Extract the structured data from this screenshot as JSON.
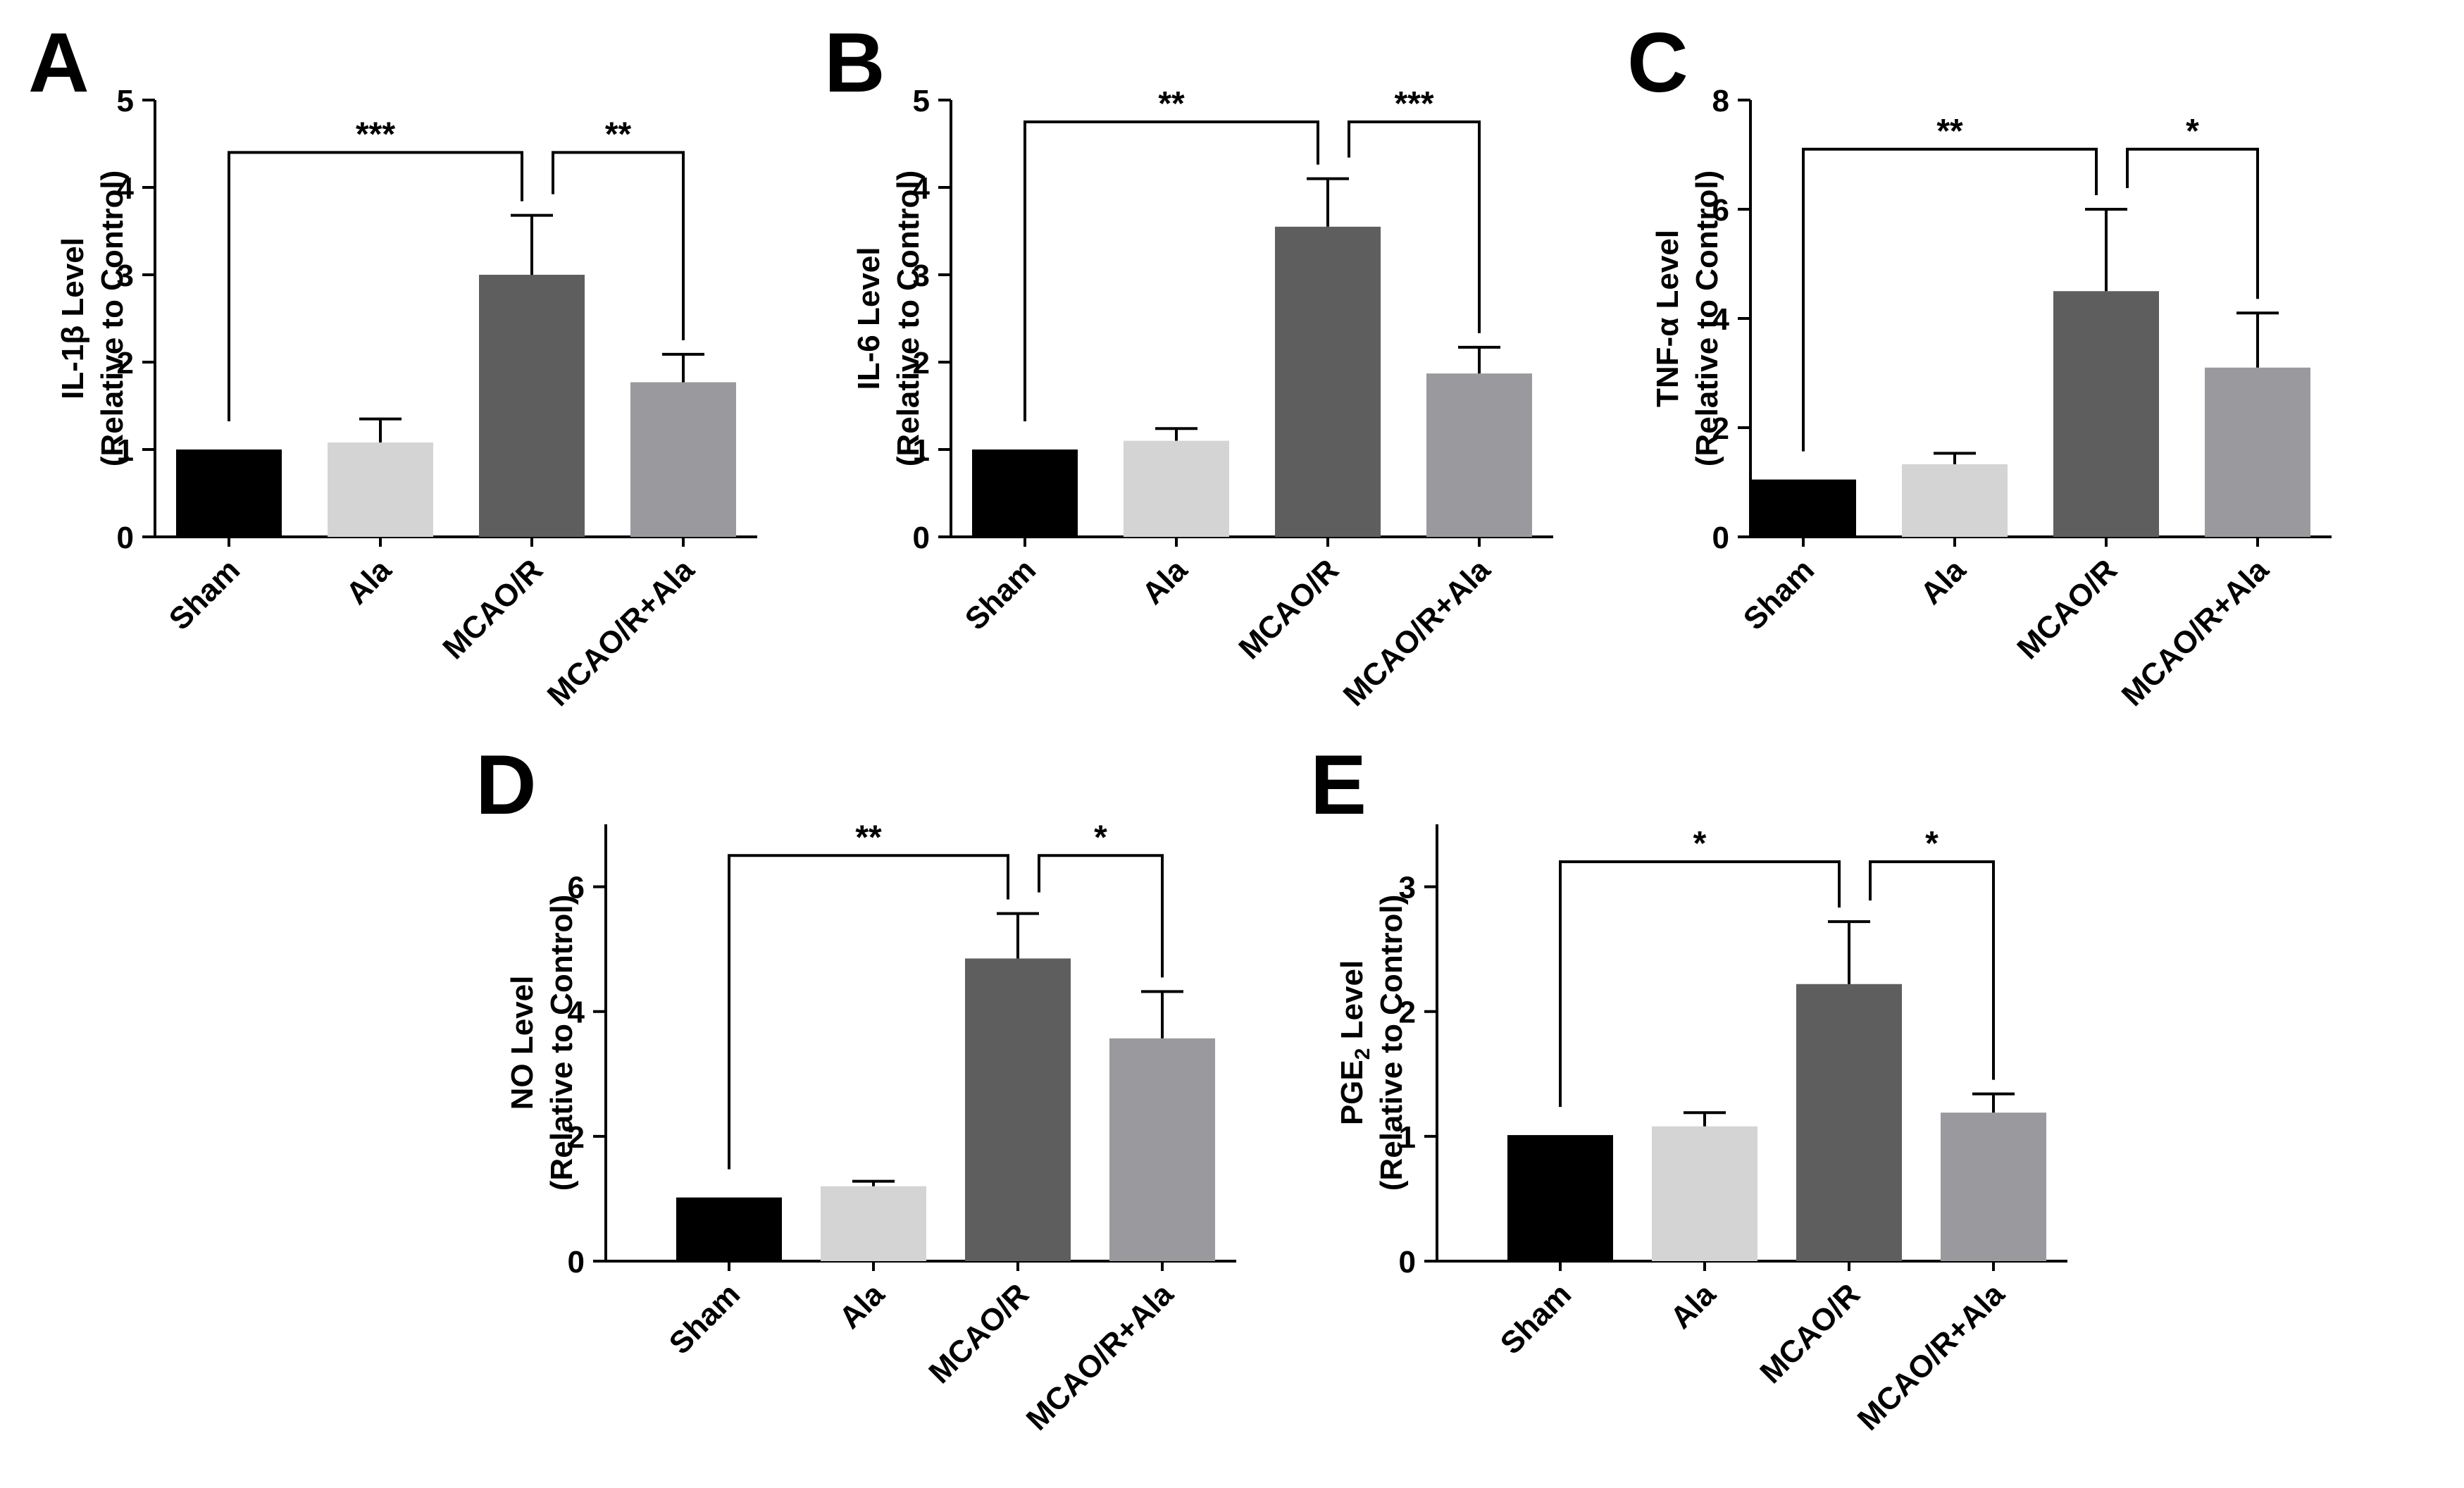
{
  "chart_data": [
    {
      "panel_label": "A",
      "type": "bar",
      "categories": [
        "Sham",
        "Ala",
        "MCAO/R",
        "MCAO/R+Ala"
      ],
      "values": [
        1.0,
        1.08,
        3.0,
        1.77
      ],
      "errors": [
        0,
        0.27,
        0.68,
        0.32
      ],
      "ylabel": [
        "IL-1β Level",
        "(Relative to Control)"
      ],
      "ylim": [
        0,
        5
      ],
      "yticks": [
        "0",
        "1",
        "2",
        "3",
        "4",
        "5"
      ],
      "significance": [
        {
          "from": 0,
          "to": 2,
          "label": "***",
          "y": 4.4
        },
        {
          "from": 2,
          "to": 3,
          "label": "**",
          "y": 4.4
        }
      ]
    },
    {
      "panel_label": "B",
      "type": "bar",
      "categories": [
        "Sham",
        "Ala",
        "MCAO/R",
        "MCAO/R+Ala"
      ],
      "values": [
        1.0,
        1.1,
        3.55,
        1.87
      ],
      "errors": [
        0,
        0.14,
        0.55,
        0.3
      ],
      "ylabel": [
        "IL-6 Level",
        "(Relative to Control)"
      ],
      "ylim": [
        0,
        5
      ],
      "yticks": [
        "0",
        "1",
        "2",
        "3",
        "4",
        "5"
      ],
      "significance": [
        {
          "from": 0,
          "to": 2,
          "label": "**",
          "y": 4.75
        },
        {
          "from": 2,
          "to": 3,
          "label": "***",
          "y": 4.75
        }
      ]
    },
    {
      "panel_label": "C",
      "type": "bar",
      "categories": [
        "Sham",
        "Ala",
        "MCAO/R",
        "MCAO/R+Ala"
      ],
      "values": [
        1.05,
        1.33,
        4.5,
        3.1
      ],
      "errors": [
        0,
        0.2,
        1.5,
        1.0
      ],
      "ylabel": [
        "TNF-α Level",
        "(Relative to Control)"
      ],
      "ylim": [
        0,
        8
      ],
      "yticks": [
        "0",
        "2",
        "4",
        "6",
        "8"
      ],
      "significance": [
        {
          "from": 0,
          "to": 2,
          "label": "**",
          "y": 7.1
        },
        {
          "from": 2,
          "to": 3,
          "label": "*",
          "y": 7.1
        }
      ]
    },
    {
      "panel_label": "D",
      "type": "bar",
      "categories": [
        "Sham",
        "Ala",
        "MCAO/R",
        "MCAO/R+Ala"
      ],
      "values": [
        1.02,
        1.2,
        4.85,
        3.57
      ],
      "errors": [
        0,
        0.08,
        0.72,
        0.75
      ],
      "ylabel": [
        "NO Level",
        "(Relative to Control)"
      ],
      "ylim": [
        0,
        7
      ],
      "yticks": [
        "0",
        "2",
        "4",
        "6"
      ],
      "significance": [
        {
          "from": 0,
          "to": 2,
          "label": "**",
          "y": 6.5
        },
        {
          "from": 2,
          "to": 3,
          "label": "*",
          "y": 6.5
        }
      ]
    },
    {
      "panel_label": "E",
      "type": "bar",
      "categories": [
        "Sham",
        "Ala",
        "MCAO/R",
        "MCAO/R+Ala"
      ],
      "values": [
        1.01,
        1.08,
        2.22,
        1.19
      ],
      "errors": [
        0,
        0.11,
        0.5,
        0.15
      ],
      "ylabel": [
        "PGE",
        "2",
        " Level",
        "(Relative to Control)"
      ],
      "ylim": [
        0,
        3.5
      ],
      "yticks": [
        "0",
        "1",
        "2",
        "3"
      ],
      "significance": [
        {
          "from": 0,
          "to": 2,
          "label": "*",
          "y": 3.2
        },
        {
          "from": 2,
          "to": 3,
          "label": "*",
          "y": 3.2
        }
      ]
    }
  ],
  "colors": {
    "bars": [
      "#000000",
      "#d4d4d4",
      "#5e5e5e",
      "#9a9a9e"
    ],
    "axis": "#000000"
  }
}
